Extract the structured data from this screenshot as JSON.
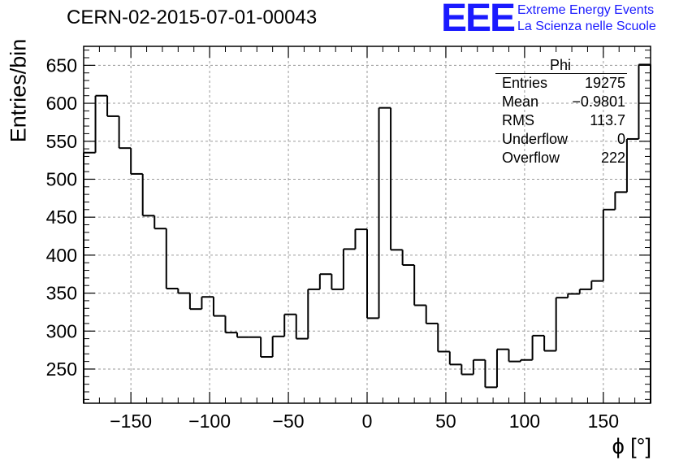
{
  "header": {
    "title": "CERN-02-2015-07-01-00043",
    "logo_text": "EEE",
    "logo_line1": "Extreme Energy Events",
    "logo_line2": "La Scienza nelle Scuole"
  },
  "stats_box": {
    "title": "Phi",
    "rows": [
      {
        "label": "Entries",
        "value": "19275"
      },
      {
        "label": "Mean",
        "value": "−0.9801"
      },
      {
        "label": "RMS",
        "value": "113.7"
      },
      {
        "label": "Underflow",
        "value": "0"
      },
      {
        "label": "Overflow",
        "value": "222"
      }
    ]
  },
  "chart_data": {
    "type": "bar",
    "subtype": "step-histogram",
    "title": "CERN-02-2015-07-01-00043",
    "xlabel": "ϕ [°]",
    "ylabel": "Entries/bin",
    "xlim": [
      -180,
      180
    ],
    "ylim": [
      205,
      675
    ],
    "grid": true,
    "bin_width": 7.5,
    "bin_edges_start": -180,
    "values": [
      535,
      610,
      583,
      541,
      507,
      452,
      435,
      356,
      350,
      329,
      345,
      320,
      298,
      292,
      292,
      266,
      293,
      322,
      290,
      355,
      375,
      355,
      408,
      434,
      317,
      594,
      407,
      387,
      334,
      310,
      273,
      256,
      243,
      262,
      226,
      276,
      260,
      262,
      294,
      274,
      344,
      349,
      355,
      366,
      460,
      483,
      553,
      651
    ],
    "xticks": [
      -150,
      -100,
      -50,
      0,
      50,
      100,
      150
    ],
    "xtick_labels": [
      "−150",
      "−100",
      "−50",
      "0",
      "50",
      "100",
      "150"
    ],
    "yticks": [
      250,
      300,
      350,
      400,
      450,
      500,
      550,
      600,
      650
    ],
    "ytick_labels": [
      "250",
      "300",
      "350",
      "400",
      "450",
      "500",
      "550",
      "600",
      "650"
    ]
  }
}
